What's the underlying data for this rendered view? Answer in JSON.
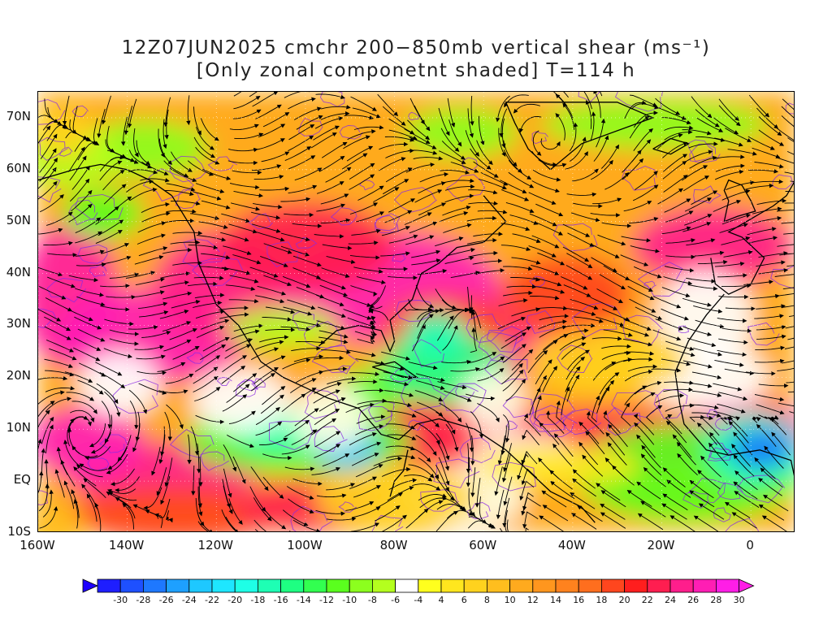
{
  "title": {
    "line1": "12Z07JUN2025 cmchr 200−850mb vertical shear (ms⁻¹)",
    "line2": "[Only zonal componetnt shaded] T=114 h"
  },
  "axes": {
    "lat_labels": [
      "70N",
      "60N",
      "50N",
      "40N",
      "30N",
      "20N",
      "10N",
      "EQ",
      "10S"
    ],
    "lon_labels": [
      "160W",
      "140W",
      "120W",
      "100W",
      "80W",
      "60W",
      "40W",
      "20W",
      "0"
    ],
    "lat_range": [
      -10,
      75
    ],
    "lon_range": [
      -160,
      10
    ]
  },
  "colorbar": {
    "labels": [
      "-30",
      "-28",
      "-26",
      "-24",
      "-22",
      "-20",
      "-18",
      "-16",
      "-14",
      "-12",
      "-10",
      "-8",
      "-6",
      "-4",
      "4",
      "6",
      "8",
      "10",
      "12",
      "14",
      "16",
      "18",
      "20",
      "22",
      "24",
      "26",
      "28",
      "30"
    ],
    "colors": [
      "#1e1eff",
      "#1e50ff",
      "#1e78ff",
      "#1ea0ff",
      "#1ec8ff",
      "#1ee6ff",
      "#1effe6",
      "#1effb4",
      "#1eff82",
      "#32ff50",
      "#5aff1e",
      "#8cff1e",
      "#b4ff1e",
      "#ffffff",
      "#ffff1e",
      "#ffe61e",
      "#ffd21e",
      "#ffbe1e",
      "#ffaa1e",
      "#ff961e",
      "#ff821e",
      "#ff6e1e",
      "#ff461e",
      "#ff1e1e",
      "#ff1e50",
      "#ff1e8c",
      "#ff1eb4",
      "#ff1ee6"
    ]
  },
  "colors": {
    "streamline": "#000000",
    "contour": "#8a2be2",
    "coast": "#000000"
  }
}
